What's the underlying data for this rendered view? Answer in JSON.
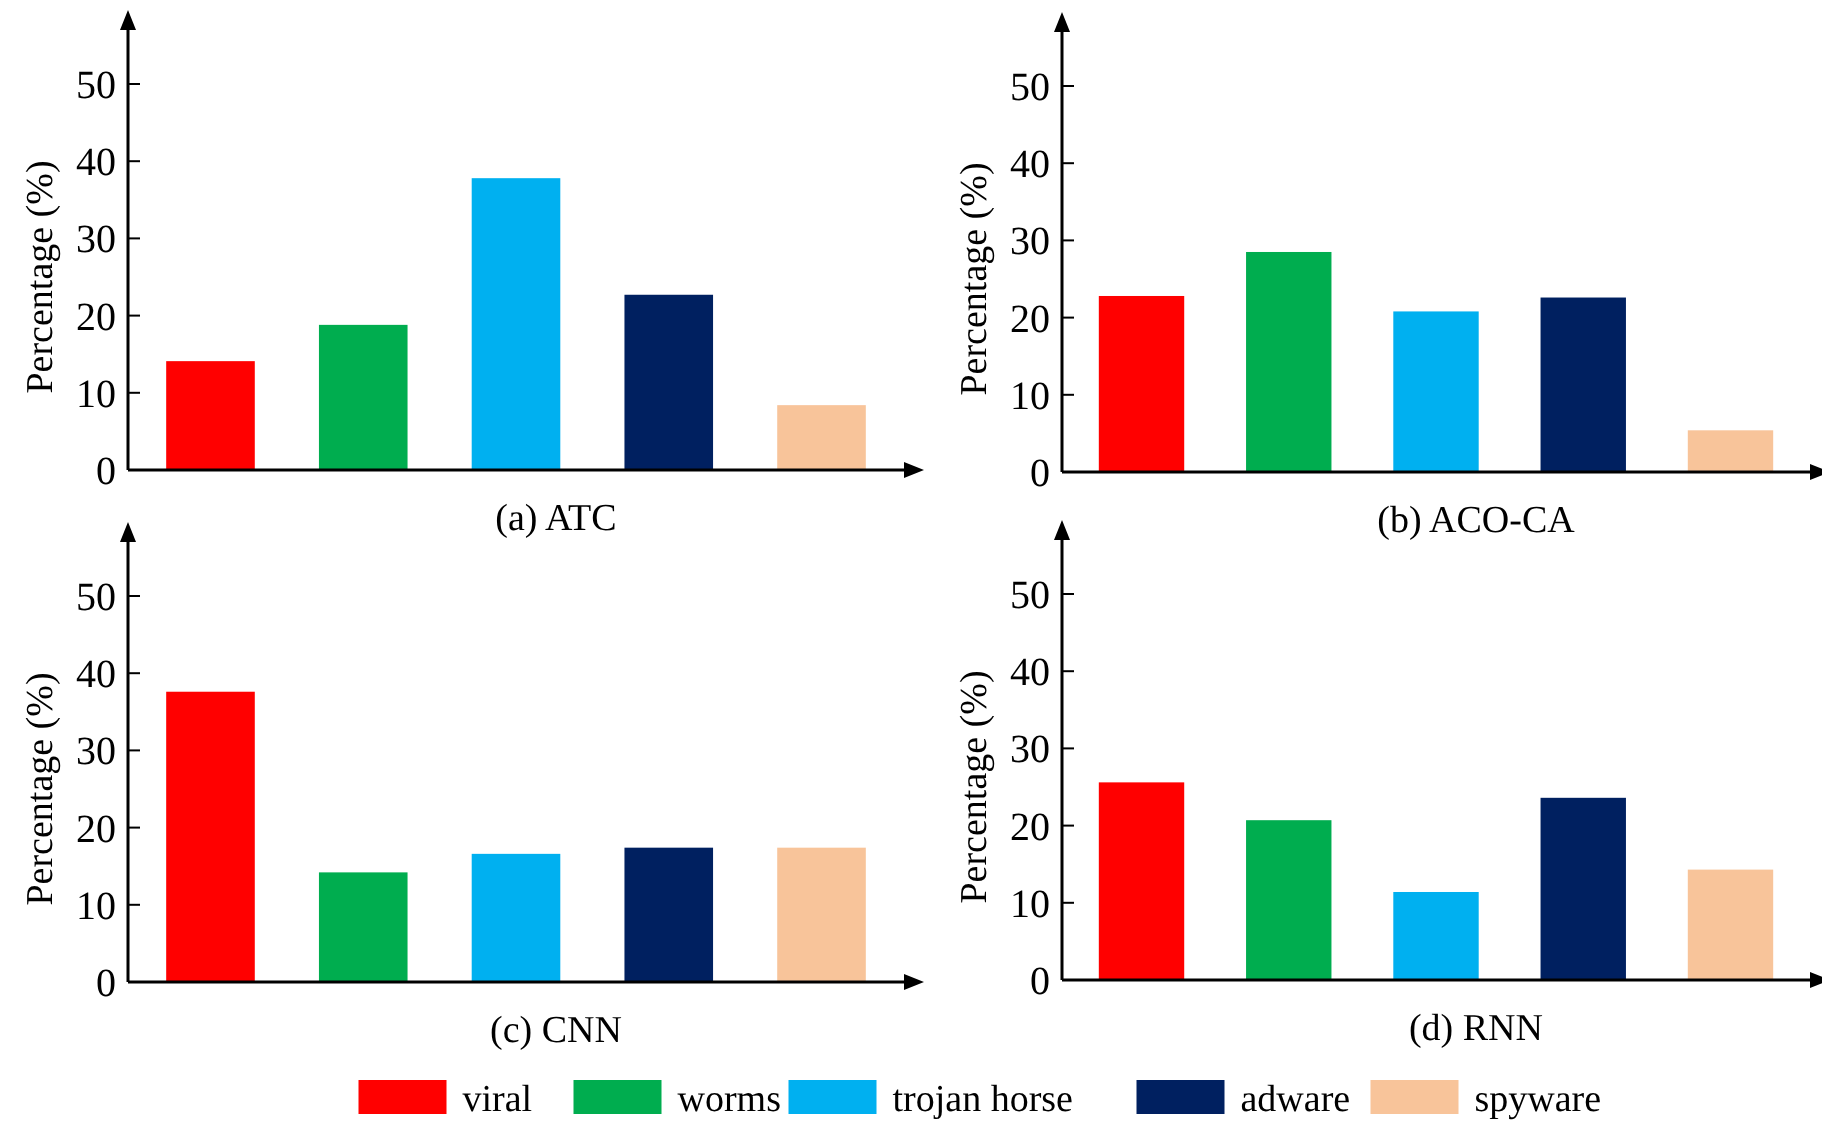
{
  "chart_data": [
    {
      "type": "bar",
      "title": "(a) ATC",
      "ylabel": "Percentage (%)",
      "categories": [
        null
      ],
      "ylim": [
        0,
        57
      ],
      "yticks": [
        0,
        10,
        20,
        30,
        40,
        50
      ],
      "series": [
        {
          "color": "#ff0000",
          "values": [
            14.1
          ]
        },
        {
          "color": "#00ad4f",
          "values": [
            18.8
          ]
        },
        {
          "color": "#00b0f0",
          "values": [
            37.8
          ]
        },
        {
          "color": "#002060",
          "values": [
            22.7
          ]
        },
        {
          "color": "#f8c49a",
          "values": [
            8.4
          ]
        }
      ]
    },
    {
      "type": "bar",
      "title": "(b) ACO-CA",
      "ylabel": "Percentage (%)",
      "categories": [
        null
      ],
      "ylim": [
        0,
        57
      ],
      "yticks": [
        0,
        10,
        20,
        30,
        40,
        50
      ],
      "series": [
        {
          "color": "#ff0000",
          "values": [
            22.8
          ]
        },
        {
          "color": "#00ad4f",
          "values": [
            28.5
          ]
        },
        {
          "color": "#00b0f0",
          "values": [
            20.8
          ]
        },
        {
          "color": "#002060",
          "values": [
            22.6
          ]
        },
        {
          "color": "#f8c49a",
          "values": [
            5.4
          ]
        }
      ]
    },
    {
      "type": "bar",
      "title": "(c) CNN",
      "ylabel": "Percentage (%)",
      "categories": [
        null
      ],
      "ylim": [
        0,
        57
      ],
      "yticks": [
        0,
        10,
        20,
        30,
        40,
        50
      ],
      "series": [
        {
          "color": "#ff0000",
          "values": [
            37.6
          ]
        },
        {
          "color": "#00ad4f",
          "values": [
            14.2
          ]
        },
        {
          "color": "#00b0f0",
          "values": [
            16.6
          ]
        },
        {
          "color": "#002060",
          "values": [
            17.4
          ]
        },
        {
          "color": "#f8c49a",
          "values": [
            17.4
          ]
        }
      ]
    },
    {
      "type": "bar",
      "title": "(d) RNN",
      "ylabel": "Percentage (%)",
      "categories": [
        null
      ],
      "ylim": [
        0,
        57
      ],
      "yticks": [
        0,
        10,
        20,
        30,
        40,
        50
      ],
      "legend": "bottom",
      "series": [
        {
          "name": "viral",
          "color": "#ff0000",
          "values": [
            25.6
          ]
        },
        {
          "name": "worms",
          "color": "#00ad4f",
          "values": [
            20.7
          ]
        },
        {
          "name": "trojan horse",
          "color": "#00b0f0",
          "values": [
            11.4
          ]
        },
        {
          "name": "adware",
          "color": "#002060",
          "values": [
            23.6
          ]
        },
        {
          "name": "spyware",
          "color": "#f8c49a",
          "values": [
            14.3
          ]
        }
      ]
    }
  ]
}
